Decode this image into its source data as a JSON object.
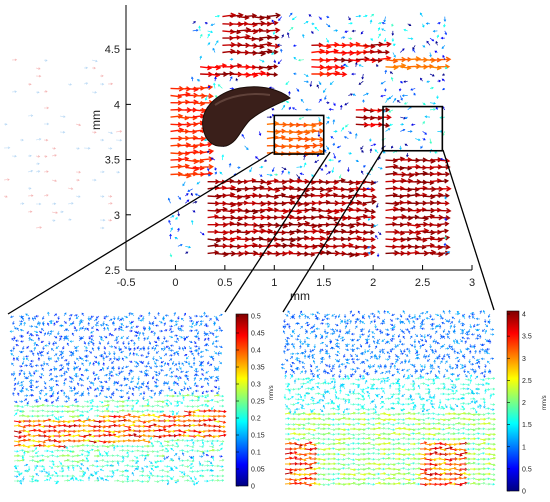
{
  "chart_data": [
    {
      "type": "quiver",
      "title": "",
      "xlabel": "mm",
      "ylabel": "mm",
      "xlim": [
        -0.5,
        3
      ],
      "ylim": [
        2.5,
        4.9
      ],
      "xticks": [
        "-0.5",
        "0",
        "0.5",
        "1",
        "1.5",
        "2",
        "2.5",
        "3"
      ],
      "yticks": [
        "2.5",
        "3",
        "3.5",
        "4",
        "4.5"
      ],
      "grid": false,
      "zoom_boxes": [
        {
          "x": [
            1.0,
            1.5
          ],
          "y": [
            3.55,
            3.9
          ]
        },
        {
          "x": [
            2.1,
            2.7
          ],
          "y": [
            3.58,
            3.98
          ]
        }
      ]
    },
    {
      "type": "quiver",
      "colorbar": {
        "unit": "mm/s",
        "min": 0,
        "max": 0.5,
        "tick_labels": [
          "0",
          "0.05",
          "0.1",
          "0.15",
          "0.2",
          "0.25",
          "0.3",
          "0.35",
          "0.4",
          "0.45",
          "0.5"
        ]
      }
    },
    {
      "type": "quiver",
      "colorbar": {
        "unit": "mm/s",
        "min": 0,
        "max": 4,
        "tick_labels": [
          "0",
          "0.5",
          "1",
          "1.5",
          "2",
          "2.5",
          "3",
          "3.5",
          "4"
        ]
      }
    }
  ],
  "colors": {
    "jet": [
      "#00007f",
      "#0000ff",
      "#007fff",
      "#00ffff",
      "#7fff7f",
      "#ffff00",
      "#ff7f00",
      "#ff0000",
      "#7f0000"
    ],
    "box_stroke": "#000000",
    "mussel": "#3a1f1a"
  }
}
